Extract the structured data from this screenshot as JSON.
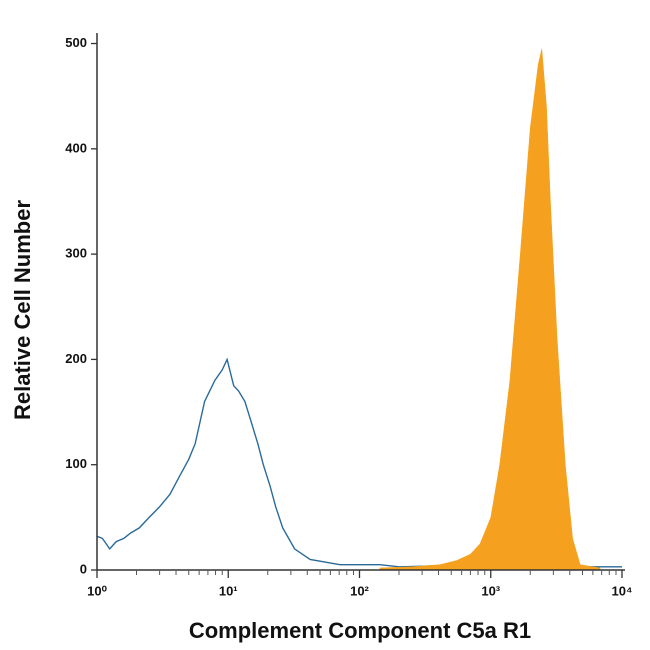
{
  "chart_data": {
    "type": "histogram",
    "x_label": "Complement Component C5a R1",
    "y_label": "Relative Cell Number",
    "xscale": "log",
    "xlim": [
      1,
      10000
    ],
    "ylim": [
      0,
      510
    ],
    "xticks": [
      {
        "value": 1,
        "label": "10⁰"
      },
      {
        "value": 10,
        "label": "10¹"
      },
      {
        "value": 100,
        "label": "10²"
      },
      {
        "value": 1000,
        "label": "10³"
      },
      {
        "value": 10000,
        "label": "10⁴"
      }
    ],
    "yticks": [
      0,
      100,
      200,
      300,
      400,
      500
    ],
    "series": [
      {
        "color": "#2a6a99",
        "fill": false,
        "x": [
          1,
          1.1,
          1.25,
          1.4,
          1.6,
          1.8,
          2.1,
          2.5,
          3,
          3.6,
          4.3,
          5,
          5.6,
          6.6,
          7.9,
          9,
          9.8,
          11,
          12,
          13.4,
          15,
          16.8,
          18.5,
          20.8,
          23,
          26,
          32,
          42,
          71,
          143,
          200,
          400,
          1000,
          3000,
          6000,
          10000
        ],
        "values": [
          32,
          30,
          20,
          27,
          30,
          35,
          40,
          50,
          60,
          72,
          90,
          105,
          120,
          160,
          180,
          190,
          200,
          175,
          170,
          160,
          140,
          120,
          100,
          80,
          60,
          40,
          20,
          10,
          5,
          5,
          3,
          4,
          3,
          4,
          3,
          3
        ]
      },
      {
        "color": "#f5a11f",
        "fill": true,
        "x": [
          143,
          250,
          410,
          550,
          700,
          830,
          1000,
          1170,
          1400,
          1680,
          2000,
          2300,
          2450,
          2660,
          2850,
          3200,
          3700,
          4200,
          4800,
          6800
        ],
        "values": [
          2,
          3,
          5,
          9,
          15,
          25,
          50,
          100,
          180,
          300,
          420,
          480,
          495,
          440,
          350,
          220,
          100,
          30,
          5,
          2
        ]
      }
    ]
  }
}
